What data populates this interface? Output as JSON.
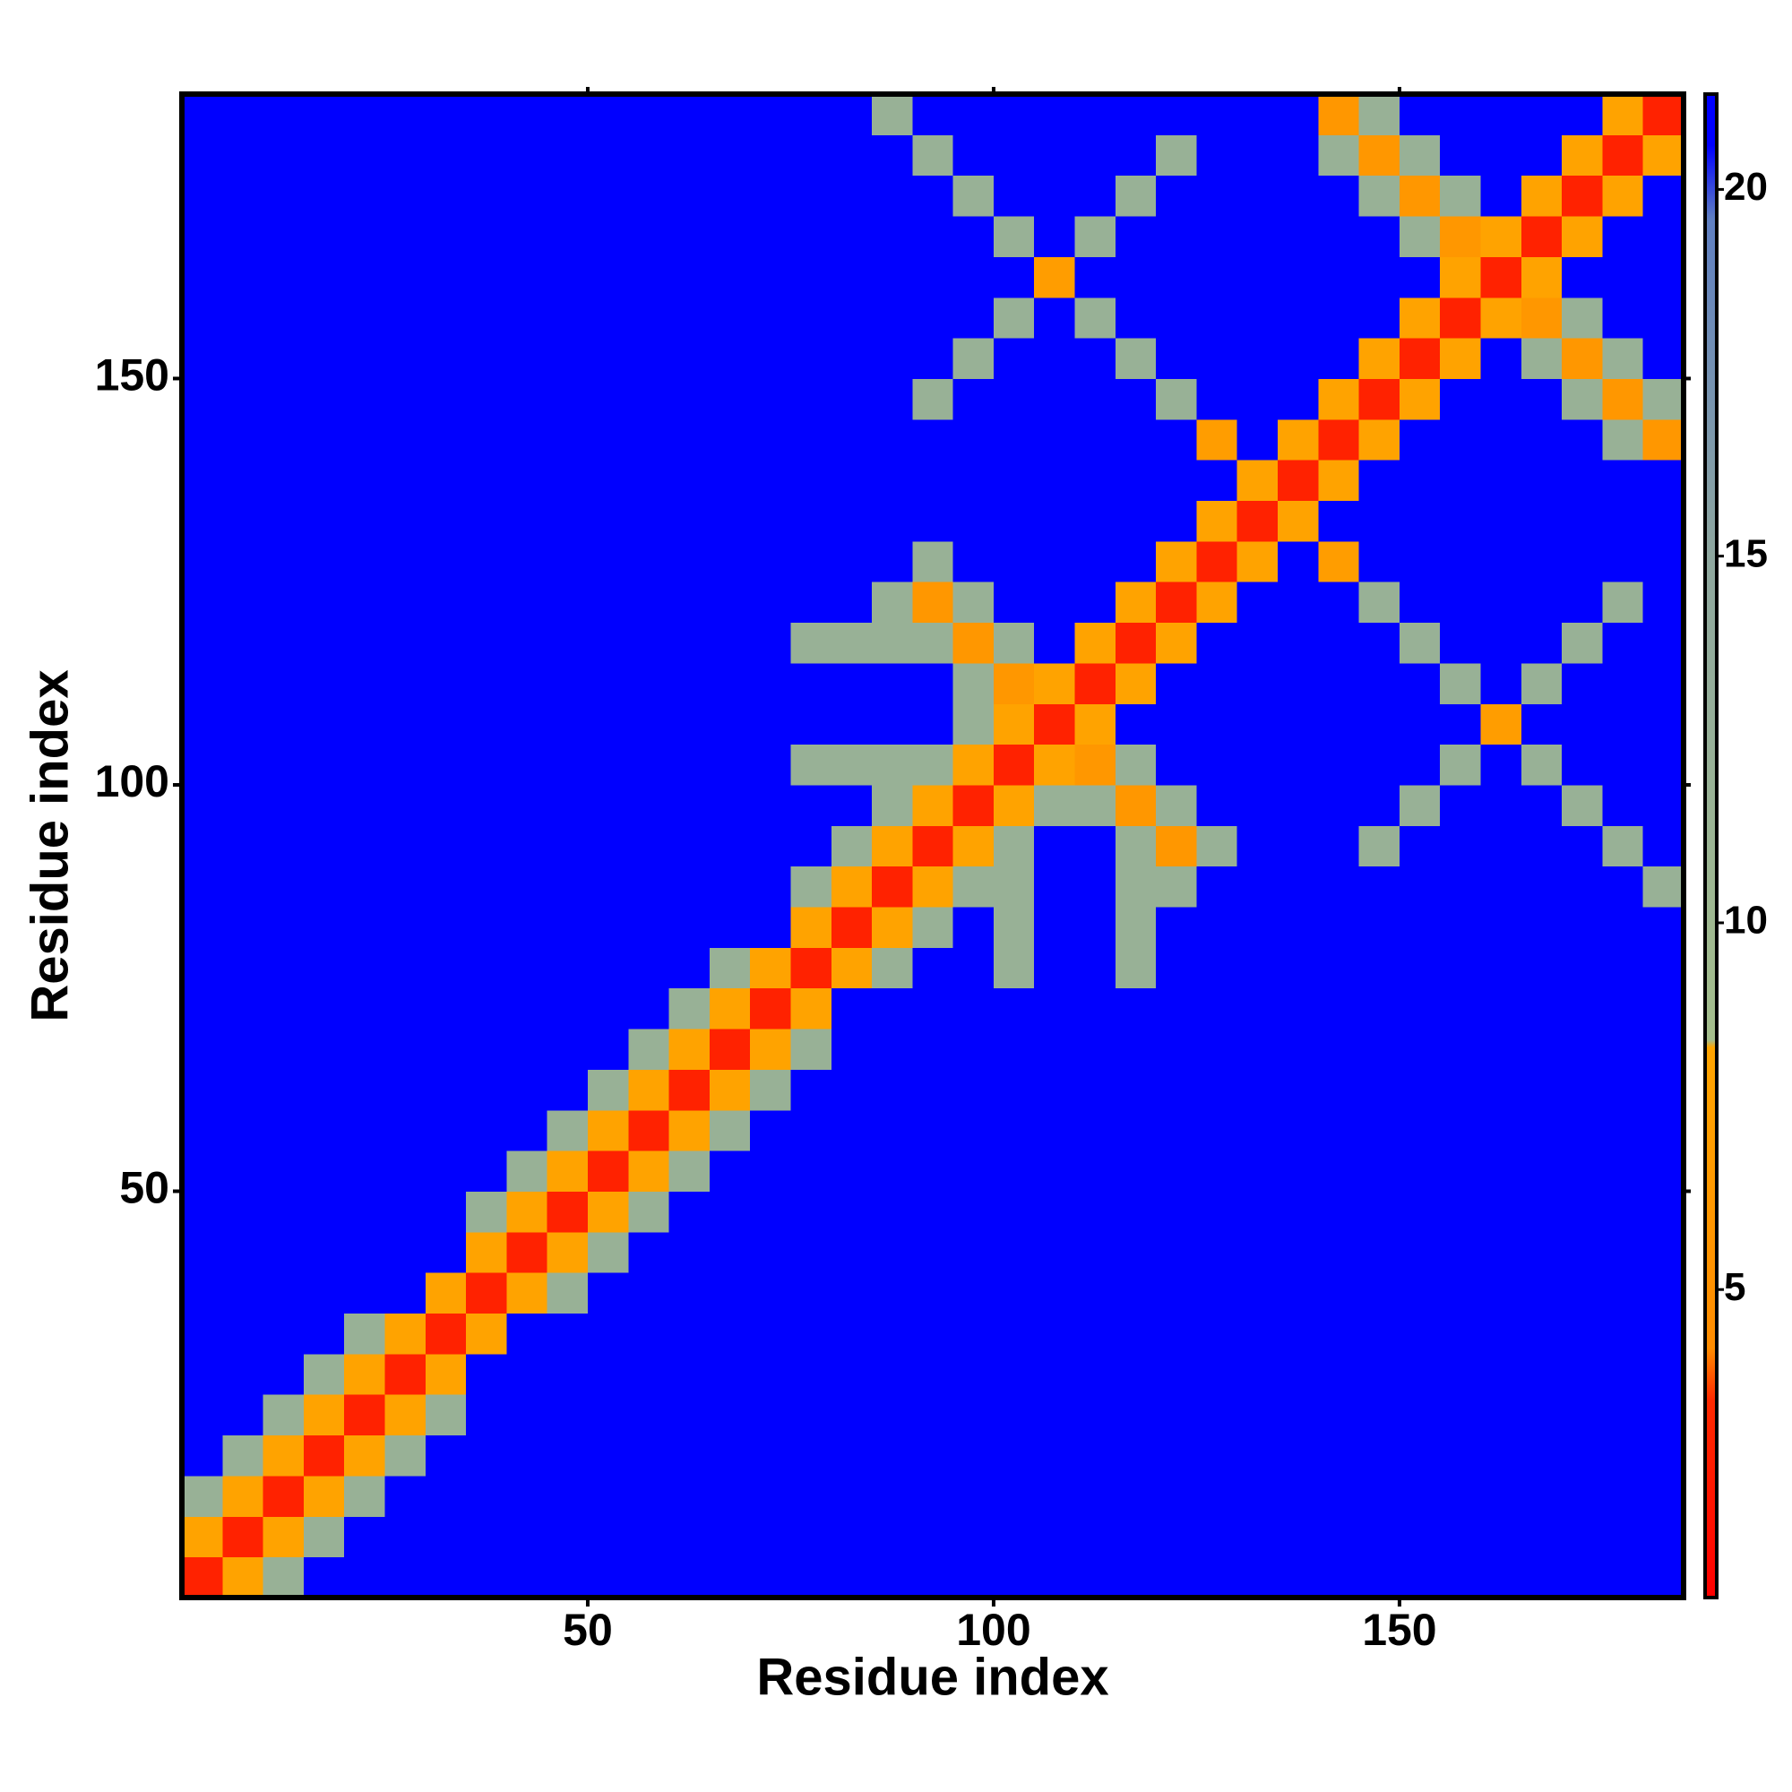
{
  "chart_data": {
    "type": "heatmap",
    "xlabel": "Residue index",
    "ylabel": "Residue index",
    "x_edges": [
      0,
      5,
      10,
      15,
      20,
      25,
      30,
      35,
      40,
      45,
      50,
      55,
      60,
      65,
      70,
      75,
      80,
      85,
      90,
      95,
      100,
      105,
      110,
      115,
      120,
      125,
      130,
      135,
      140,
      145,
      150,
      155,
      160,
      165,
      170,
      175,
      180,
      185
    ],
    "y_edges": [
      0,
      5,
      10,
      15,
      20,
      25,
      30,
      35,
      40,
      45,
      50,
      55,
      60,
      65,
      70,
      75,
      80,
      85,
      90,
      95,
      100,
      105,
      110,
      115,
      120,
      125,
      130,
      135,
      140,
      145,
      150,
      155,
      160,
      165,
      170,
      175,
      180,
      185
    ],
    "xlim": [
      0,
      185
    ],
    "ylim": [
      0,
      185
    ],
    "xticks": [
      50,
      100,
      150
    ],
    "yticks": [
      50,
      100,
      150
    ],
    "zlim": [
      0.8,
      21.3
    ],
    "colorbar_ticks": [
      5,
      10,
      15,
      20
    ],
    "colorscale": [
      [
        0.8,
        "#ff0000"
      ],
      [
        3.5,
        "#ff2a00"
      ],
      [
        4.2,
        "#ff8c00"
      ],
      [
        8.3,
        "#ffa500"
      ],
      [
        8.4,
        "#a4be8c"
      ],
      [
        15,
        "#8ea79f"
      ],
      [
        19.6,
        "#5f7fc2"
      ],
      [
        20.6,
        "#0000ff"
      ],
      [
        21.3,
        "#0000ff"
      ]
    ],
    "z": [
      [
        3,
        8,
        12,
        21,
        21,
        21,
        21,
        21,
        21,
        21,
        21,
        21,
        21,
        21,
        21,
        21,
        21,
        21,
        21,
        21,
        21,
        21,
        21,
        21,
        21,
        21,
        21,
        21,
        21,
        21,
        21,
        21,
        21,
        21,
        21,
        21,
        21
      ],
      [
        8,
        3,
        8,
        12,
        21,
        21,
        21,
        21,
        21,
        21,
        21,
        21,
        21,
        21,
        21,
        21,
        21,
        21,
        21,
        21,
        21,
        21,
        21,
        21,
        21,
        21,
        21,
        21,
        21,
        21,
        21,
        21,
        21,
        21,
        21,
        21,
        21
      ],
      [
        12,
        8,
        3,
        8,
        12,
        21,
        21,
        21,
        21,
        21,
        21,
        21,
        21,
        21,
        21,
        21,
        21,
        21,
        21,
        21,
        21,
        21,
        21,
        21,
        21,
        21,
        21,
        21,
        21,
        21,
        21,
        21,
        21,
        21,
        21,
        21,
        21
      ],
      [
        21,
        12,
        8,
        3,
        8,
        12,
        21,
        21,
        21,
        21,
        21,
        21,
        21,
        21,
        21,
        21,
        21,
        21,
        21,
        21,
        21,
        21,
        21,
        21,
        21,
        21,
        21,
        21,
        21,
        21,
        21,
        21,
        21,
        21,
        21,
        21,
        21
      ],
      [
        21,
        21,
        12,
        8,
        3,
        8,
        12,
        21,
        21,
        21,
        21,
        21,
        21,
        21,
        21,
        21,
        21,
        21,
        21,
        21,
        21,
        21,
        21,
        21,
        21,
        21,
        21,
        21,
        21,
        21,
        21,
        21,
        21,
        21,
        21,
        21,
        21
      ],
      [
        21,
        21,
        21,
        12,
        8,
        3,
        8,
        21,
        21,
        21,
        21,
        21,
        21,
        21,
        21,
        21,
        21,
        21,
        21,
        21,
        21,
        21,
        21,
        21,
        21,
        21,
        21,
        21,
        21,
        21,
        21,
        21,
        21,
        21,
        21,
        21,
        21
      ],
      [
        21,
        21,
        21,
        21,
        12,
        8,
        3,
        8,
        21,
        21,
        21,
        21,
        21,
        21,
        21,
        21,
        21,
        21,
        21,
        21,
        21,
        21,
        21,
        21,
        21,
        21,
        21,
        21,
        21,
        21,
        21,
        21,
        21,
        21,
        21,
        21,
        21
      ],
      [
        21,
        21,
        21,
        21,
        21,
        21,
        8,
        3,
        8,
        12,
        21,
        21,
        21,
        21,
        21,
        21,
        21,
        21,
        21,
        21,
        21,
        21,
        21,
        21,
        21,
        21,
        21,
        21,
        21,
        21,
        21,
        21,
        21,
        21,
        21,
        21,
        21
      ],
      [
        21,
        21,
        21,
        21,
        21,
        21,
        21,
        8,
        3,
        8,
        12,
        21,
        21,
        21,
        21,
        21,
        21,
        21,
        21,
        21,
        21,
        21,
        21,
        21,
        21,
        21,
        21,
        21,
        21,
        21,
        21,
        21,
        21,
        21,
        21,
        21,
        21
      ],
      [
        21,
        21,
        21,
        21,
        21,
        21,
        21,
        12,
        8,
        3,
        8,
        12,
        21,
        21,
        21,
        21,
        21,
        21,
        21,
        21,
        21,
        21,
        21,
        21,
        21,
        21,
        21,
        21,
        21,
        21,
        21,
        21,
        21,
        21,
        21,
        21,
        21
      ],
      [
        21,
        21,
        21,
        21,
        21,
        21,
        21,
        21,
        12,
        8,
        3,
        8,
        12,
        21,
        21,
        21,
        21,
        21,
        21,
        21,
        21,
        21,
        21,
        21,
        21,
        21,
        21,
        21,
        21,
        21,
        21,
        21,
        21,
        21,
        21,
        21,
        21
      ],
      [
        21,
        21,
        21,
        21,
        21,
        21,
        21,
        21,
        21,
        12,
        8,
        3,
        8,
        12,
        21,
        21,
        21,
        21,
        21,
        21,
        21,
        21,
        21,
        21,
        21,
        21,
        21,
        21,
        21,
        21,
        21,
        21,
        21,
        21,
        21,
        21,
        21
      ],
      [
        21,
        21,
        21,
        21,
        21,
        21,
        21,
        21,
        21,
        21,
        12,
        8,
        3,
        8,
        12,
        21,
        21,
        21,
        21,
        21,
        21,
        21,
        21,
        21,
        21,
        21,
        21,
        21,
        21,
        21,
        21,
        21,
        21,
        21,
        21,
        21,
        21
      ],
      [
        21,
        21,
        21,
        21,
        21,
        21,
        21,
        21,
        21,
        21,
        21,
        12,
        8,
        3,
        8,
        12,
        21,
        21,
        21,
        21,
        21,
        21,
        21,
        21,
        21,
        21,
        21,
        21,
        21,
        21,
        21,
        21,
        21,
        21,
        21,
        21,
        21
      ],
      [
        21,
        21,
        21,
        21,
        21,
        21,
        21,
        21,
        21,
        21,
        21,
        21,
        12,
        8,
        3,
        8,
        21,
        21,
        21,
        21,
        21,
        21,
        21,
        21,
        21,
        21,
        21,
        21,
        21,
        21,
        21,
        21,
        21,
        21,
        21,
        21,
        21
      ],
      [
        21,
        21,
        21,
        21,
        21,
        21,
        21,
        21,
        21,
        21,
        21,
        21,
        21,
        12,
        8,
        3,
        8,
        12,
        21,
        21,
        12,
        21,
        21,
        12,
        21,
        21,
        21,
        21,
        21,
        21,
        21,
        21,
        21,
        21,
        21,
        21,
        21
      ],
      [
        21,
        21,
        21,
        21,
        21,
        21,
        21,
        21,
        21,
        21,
        21,
        21,
        21,
        21,
        21,
        8,
        3,
        8,
        12,
        21,
        12,
        21,
        21,
        12,
        21,
        21,
        21,
        21,
        21,
        21,
        21,
        21,
        21,
        21,
        21,
        21,
        21
      ],
      [
        21,
        21,
        21,
        21,
        21,
        21,
        21,
        21,
        21,
        21,
        21,
        21,
        21,
        21,
        21,
        12,
        8,
        3,
        8,
        12,
        12,
        21,
        21,
        12,
        12,
        21,
        21,
        21,
        21,
        21,
        21,
        21,
        21,
        21,
        21,
        21,
        12
      ],
      [
        21,
        21,
        21,
        21,
        21,
        21,
        21,
        21,
        21,
        21,
        21,
        21,
        21,
        21,
        21,
        21,
        12,
        8,
        3,
        8,
        12,
        21,
        21,
        12,
        6,
        12,
        21,
        21,
        21,
        12,
        21,
        21,
        21,
        21,
        21,
        12,
        21
      ],
      [
        21,
        21,
        21,
        21,
        21,
        21,
        21,
        21,
        21,
        21,
        21,
        21,
        21,
        21,
        21,
        21,
        21,
        12,
        8,
        3,
        8,
        12,
        12,
        6,
        12,
        21,
        21,
        21,
        21,
        21,
        12,
        21,
        21,
        21,
        12,
        21,
        21
      ],
      [
        21,
        21,
        21,
        21,
        21,
        21,
        21,
        21,
        21,
        21,
        21,
        21,
        21,
        21,
        21,
        12,
        12,
        12,
        12,
        8,
        3,
        8,
        6,
        12,
        21,
        21,
        21,
        21,
        21,
        21,
        21,
        12,
        21,
        12,
        21,
        21,
        21
      ],
      [
        21,
        21,
        21,
        21,
        21,
        21,
        21,
        21,
        21,
        21,
        21,
        21,
        21,
        21,
        21,
        21,
        21,
        21,
        21,
        12,
        8,
        3,
        8,
        21,
        21,
        21,
        21,
        21,
        21,
        21,
        21,
        21,
        7,
        21,
        21,
        21,
        21
      ],
      [
        21,
        21,
        21,
        21,
        21,
        21,
        21,
        21,
        21,
        21,
        21,
        21,
        21,
        21,
        21,
        21,
        21,
        21,
        21,
        12,
        6,
        8,
        3,
        8,
        21,
        21,
        21,
        21,
        21,
        21,
        21,
        12,
        21,
        12,
        21,
        21,
        21
      ],
      [
        21,
        21,
        21,
        21,
        21,
        21,
        21,
        21,
        21,
        21,
        21,
        21,
        21,
        21,
        21,
        12,
        12,
        12,
        12,
        6,
        12,
        21,
        8,
        3,
        8,
        21,
        21,
        21,
        21,
        21,
        12,
        21,
        21,
        21,
        12,
        21,
        21
      ],
      [
        21,
        21,
        21,
        21,
        21,
        21,
        21,
        21,
        21,
        21,
        21,
        21,
        21,
        21,
        21,
        21,
        21,
        12,
        6,
        12,
        21,
        21,
        21,
        8,
        3,
        8,
        21,
        21,
        21,
        12,
        21,
        21,
        21,
        21,
        21,
        12,
        21
      ],
      [
        21,
        21,
        21,
        21,
        21,
        21,
        21,
        21,
        21,
        21,
        21,
        21,
        21,
        21,
        21,
        21,
        21,
        21,
        12,
        21,
        21,
        21,
        21,
        21,
        8,
        3,
        8,
        21,
        7,
        21,
        21,
        21,
        21,
        21,
        21,
        21,
        21
      ],
      [
        21,
        21,
        21,
        21,
        21,
        21,
        21,
        21,
        21,
        21,
        21,
        21,
        21,
        21,
        21,
        21,
        21,
        21,
        21,
        21,
        21,
        21,
        21,
        21,
        21,
        8,
        3,
        8,
        21,
        21,
        21,
        21,
        21,
        21,
        21,
        21,
        21
      ],
      [
        21,
        21,
        21,
        21,
        21,
        21,
        21,
        21,
        21,
        21,
        21,
        21,
        21,
        21,
        21,
        21,
        21,
        21,
        21,
        21,
        21,
        21,
        21,
        21,
        21,
        21,
        8,
        3,
        8,
        21,
        21,
        21,
        21,
        21,
        21,
        21,
        21
      ],
      [
        21,
        21,
        21,
        21,
        21,
        21,
        21,
        21,
        21,
        21,
        21,
        21,
        21,
        21,
        21,
        21,
        21,
        21,
        21,
        21,
        21,
        21,
        21,
        21,
        21,
        7,
        21,
        8,
        3,
        8,
        21,
        21,
        21,
        21,
        21,
        12,
        6
      ],
      [
        21,
        21,
        21,
        21,
        21,
        21,
        21,
        21,
        21,
        21,
        21,
        21,
        21,
        21,
        21,
        21,
        21,
        21,
        12,
        21,
        21,
        21,
        21,
        21,
        12,
        21,
        21,
        21,
        8,
        3,
        8,
        21,
        21,
        21,
        12,
        6,
        12
      ],
      [
        21,
        21,
        21,
        21,
        21,
        21,
        21,
        21,
        21,
        21,
        21,
        21,
        21,
        21,
        21,
        21,
        21,
        21,
        21,
        12,
        21,
        21,
        21,
        12,
        21,
        21,
        21,
        21,
        21,
        8,
        3,
        8,
        21,
        12,
        6,
        12,
        21
      ],
      [
        21,
        21,
        21,
        21,
        21,
        21,
        21,
        21,
        21,
        21,
        21,
        21,
        21,
        21,
        21,
        21,
        21,
        21,
        21,
        21,
        12,
        21,
        12,
        21,
        21,
        21,
        21,
        21,
        21,
        21,
        8,
        3,
        8,
        6,
        12,
        21,
        21
      ],
      [
        21,
        21,
        21,
        21,
        21,
        21,
        21,
        21,
        21,
        21,
        21,
        21,
        21,
        21,
        21,
        21,
        21,
        21,
        21,
        21,
        21,
        7,
        21,
        21,
        21,
        21,
        21,
        21,
        21,
        21,
        21,
        8,
        3,
        8,
        21,
        21,
        21
      ],
      [
        21,
        21,
        21,
        21,
        21,
        21,
        21,
        21,
        21,
        21,
        21,
        21,
        21,
        21,
        21,
        21,
        21,
        21,
        21,
        21,
        12,
        21,
        12,
        21,
        21,
        21,
        21,
        21,
        21,
        21,
        12,
        6,
        8,
        3,
        8,
        21,
        21
      ],
      [
        21,
        21,
        21,
        21,
        21,
        21,
        21,
        21,
        21,
        21,
        21,
        21,
        21,
        21,
        21,
        21,
        21,
        21,
        21,
        12,
        21,
        21,
        21,
        12,
        21,
        21,
        21,
        21,
        21,
        12,
        6,
        12,
        21,
        8,
        3,
        8,
        21
      ],
      [
        21,
        21,
        21,
        21,
        21,
        21,
        21,
        21,
        21,
        21,
        21,
        21,
        21,
        21,
        21,
        21,
        21,
        21,
        12,
        21,
        21,
        21,
        21,
        21,
        12,
        21,
        21,
        21,
        12,
        6,
        12,
        21,
        21,
        21,
        8,
        3,
        8
      ],
      [
        21,
        21,
        21,
        21,
        21,
        21,
        21,
        21,
        21,
        21,
        21,
        21,
        21,
        21,
        21,
        21,
        21,
        12,
        21,
        21,
        21,
        21,
        21,
        21,
        21,
        21,
        21,
        21,
        6,
        12,
        21,
        21,
        21,
        21,
        21,
        8,
        3
      ]
    ]
  }
}
